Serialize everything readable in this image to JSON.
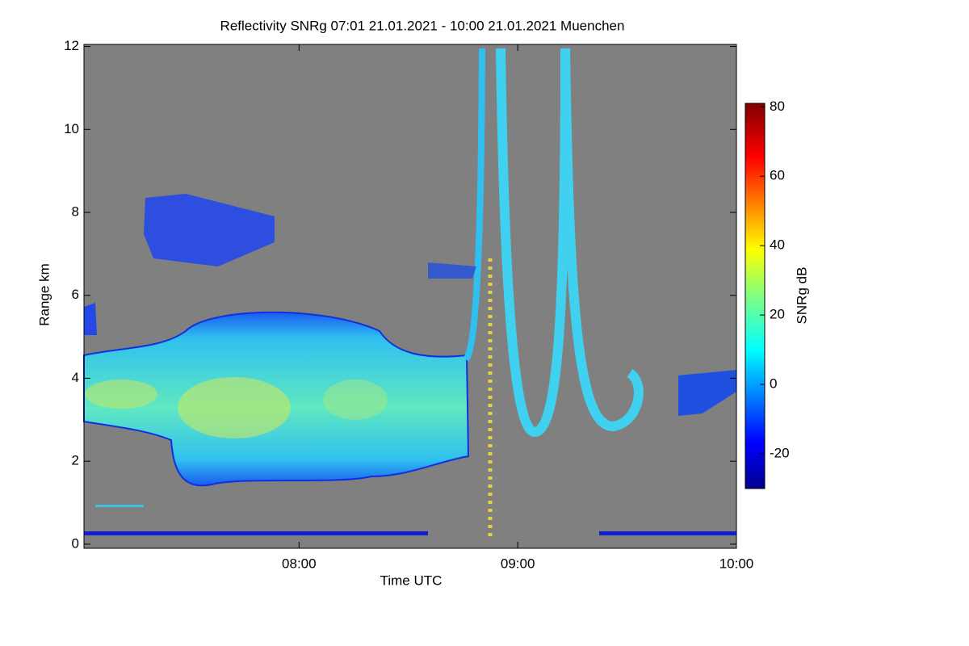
{
  "chart_data": {
    "type": "heatmap",
    "title": "Reflectivity SNRg   07:01 21.01.2021 - 10:00 21.01.2021 Muenchen",
    "x_label": "Time UTC",
    "y_label": "Range km",
    "xlim": [
      421,
      600
    ],
    "xticks": [
      {
        "value": 480,
        "label": "08:00"
      },
      {
        "value": 540,
        "label": "09:00"
      },
      {
        "value": 600,
        "label": "10:00"
      }
    ],
    "ylim": [
      -0.1,
      12.05
    ],
    "yticks": [
      0,
      2,
      4,
      6,
      8,
      10,
      12
    ],
    "colorbar": {
      "label": "SNRg dB",
      "zlim": [
        -30,
        81
      ],
      "ticks": [
        -20,
        0,
        20,
        40,
        60,
        80
      ],
      "colormap": "jet"
    }
  }
}
